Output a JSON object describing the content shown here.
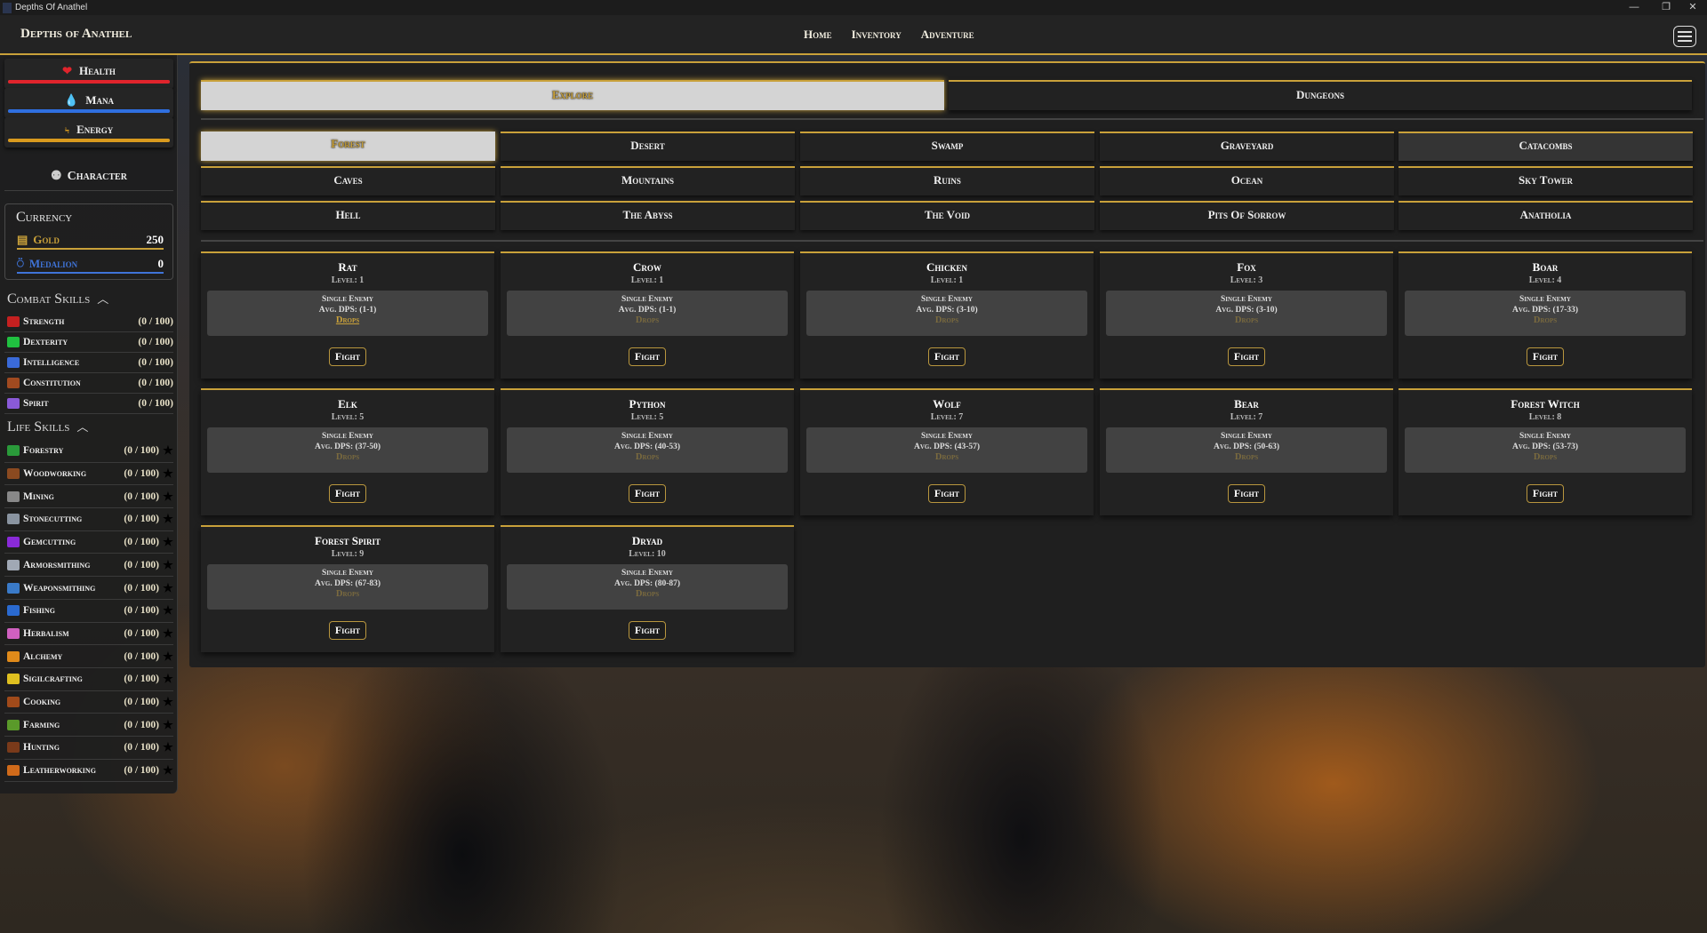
{
  "window": {
    "title": "Depths Of Anathel",
    "minimize": "—",
    "maximize": "❐",
    "close": "✕"
  },
  "header": {
    "brand": "Depths of Anathel",
    "nav": [
      "Home",
      "Inventory",
      "Adventure"
    ]
  },
  "sidebar": {
    "stats": [
      {
        "label": "Health",
        "icon": "heart-icon",
        "glyph": "❤",
        "color": "#e0242c",
        "fill": 100
      },
      {
        "label": "Mana",
        "icon": "drop-icon",
        "glyph": "💧",
        "color": "#2f6fe0",
        "fill": 100
      },
      {
        "label": "Energy",
        "icon": "lightning-icon",
        "glyph": "ϟ",
        "color": "#d99a1e",
        "fill": 100
      }
    ],
    "character": "Character",
    "currency": {
      "title": "Currency",
      "items": [
        {
          "label": "Gold",
          "value": "250",
          "color": "#c9a13a"
        },
        {
          "label": "Medalion",
          "value": "0",
          "color": "#3f74d8"
        }
      ]
    },
    "combat_title": "Combat Skills",
    "combat": [
      {
        "name": "Strength",
        "progress": "(0 / 100)",
        "color": "#c42020"
      },
      {
        "name": "Dexterity",
        "progress": "(0 / 100)",
        "color": "#20c040"
      },
      {
        "name": "Intelligence",
        "progress": "(0 / 100)",
        "color": "#3a6ad8"
      },
      {
        "name": "Constitution",
        "progress": "(0 / 100)",
        "color": "#a04a20"
      },
      {
        "name": "Spirit",
        "progress": "(0 / 100)",
        "color": "#8a5ad8"
      }
    ],
    "life_title": "Life Skills",
    "life": [
      {
        "name": "Forestry",
        "progress": "(0 / 100)",
        "color": "#2a9a3a"
      },
      {
        "name": "Woodworking",
        "progress": "(0 / 100)",
        "color": "#8a4a20"
      },
      {
        "name": "Mining",
        "progress": "(0 / 100)",
        "color": "#888888"
      },
      {
        "name": "Stonecutting",
        "progress": "(0 / 100)",
        "color": "#8a94a0"
      },
      {
        "name": "Gemcutting",
        "progress": "(0 / 100)",
        "color": "#8a2ad8"
      },
      {
        "name": "Armorsmithing",
        "progress": "(0 / 100)",
        "color": "#a0a8b4"
      },
      {
        "name": "Weaponsmithing",
        "progress": "(0 / 100)",
        "color": "#3a7ac8"
      },
      {
        "name": "Fishing",
        "progress": "(0 / 100)",
        "color": "#2a6ad0"
      },
      {
        "name": "Herbalism",
        "progress": "(0 / 100)",
        "color": "#d060c0"
      },
      {
        "name": "Alchemy",
        "progress": "(0 / 100)",
        "color": "#e08a1a"
      },
      {
        "name": "Sigilcrafting",
        "progress": "(0 / 100)",
        "color": "#e0c020"
      },
      {
        "name": "Cooking",
        "progress": "(0 / 100)",
        "color": "#a04a1a"
      },
      {
        "name": "Farming",
        "progress": "(0 / 100)",
        "color": "#5a9a2a"
      },
      {
        "name": "Hunting",
        "progress": "(0 / 100)",
        "color": "#7a3a1a"
      },
      {
        "name": "Leatherworking",
        "progress": "(0 / 100)",
        "color": "#d06a1a"
      }
    ],
    "star": "★"
  },
  "main": {
    "tabs": [
      {
        "label": "Explore",
        "active": true
      },
      {
        "label": "Dungeons",
        "active": false
      }
    ],
    "locations": [
      {
        "label": "Forest",
        "state": "active"
      },
      {
        "label": "Desert"
      },
      {
        "label": "Swamp"
      },
      {
        "label": "Graveyard"
      },
      {
        "label": "Catacombs",
        "state": "hover"
      },
      {
        "label": "Caves"
      },
      {
        "label": "Mountains"
      },
      {
        "label": "Ruins"
      },
      {
        "label": "Ocean"
      },
      {
        "label": "Sky Tower"
      },
      {
        "label": "Hell"
      },
      {
        "label": "The Abyss"
      },
      {
        "label": "The Void"
      },
      {
        "label": "Pits Of Sorrow"
      },
      {
        "label": "Anatholia"
      }
    ],
    "monsters": [
      {
        "name": "Rat",
        "level": "Level: 1",
        "type": "Single Enemy",
        "dps": "Avg. DPS: (1-1)",
        "drops": "Drops",
        "drops_active": true,
        "fight": "Fight"
      },
      {
        "name": "Crow",
        "level": "Level: 1",
        "type": "Single Enemy",
        "dps": "Avg. DPS: (1-1)",
        "drops": "Drops",
        "fight": "Fight"
      },
      {
        "name": "Chicken",
        "level": "Level: 1",
        "type": "Single Enemy",
        "dps": "Avg. DPS: (3-10)",
        "drops": "Drops",
        "fight": "Fight"
      },
      {
        "name": "Fox",
        "level": "Level: 3",
        "type": "Single Enemy",
        "dps": "Avg. DPS: (3-10)",
        "drops": "Drops",
        "fight": "Fight"
      },
      {
        "name": "Boar",
        "level": "Level: 4",
        "type": "Single Enemy",
        "dps": "Avg. DPS: (17-33)",
        "drops": "Drops",
        "fight": "Fight"
      },
      {
        "name": "Elk",
        "level": "Level: 5",
        "type": "Single Enemy",
        "dps": "Avg. DPS: (37-50)",
        "drops": "Drops",
        "fight": "Fight"
      },
      {
        "name": "Python",
        "level": "Level: 5",
        "type": "Single Enemy",
        "dps": "Avg. DPS: (40-53)",
        "drops": "Drops",
        "fight": "Fight"
      },
      {
        "name": "Wolf",
        "level": "Level: 7",
        "type": "Single Enemy",
        "dps": "Avg. DPS: (43-57)",
        "drops": "Drops",
        "fight": "Fight"
      },
      {
        "name": "Bear",
        "level": "Level: 7",
        "type": "Single Enemy",
        "dps": "Avg. DPS: (50-63)",
        "drops": "Drops",
        "fight": "Fight"
      },
      {
        "name": "Forest Witch",
        "level": "Level: 8",
        "type": "Single Enemy",
        "dps": "Avg. DPS: (53-73)",
        "drops": "Drops",
        "fight": "Fight"
      },
      {
        "name": "Forest Spirit",
        "level": "Level: 9",
        "type": "Single Enemy",
        "dps": "Avg. DPS: (67-83)",
        "drops": "Drops",
        "fight": "Fight"
      },
      {
        "name": "Dryad",
        "level": "Level: 10",
        "type": "Single Enemy",
        "dps": "Avg. DPS: (80-87)",
        "drops": "Drops",
        "fight": "Fight"
      }
    ]
  }
}
